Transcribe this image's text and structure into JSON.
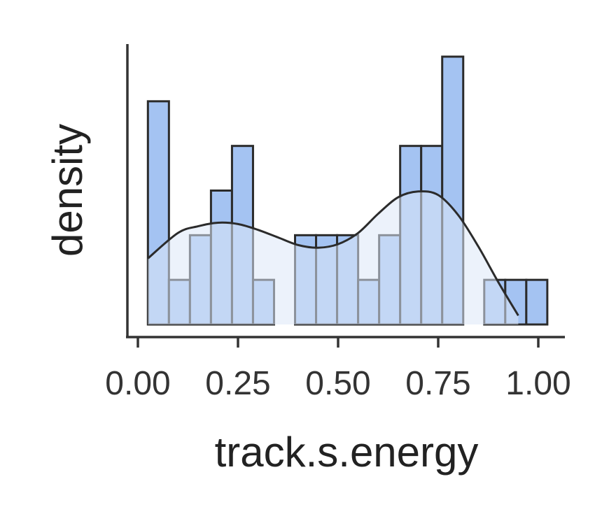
{
  "chart_data": {
    "type": "bar",
    "title": "",
    "xlabel": "track.s.energy",
    "ylabel": "density",
    "xlim": [
      -0.02,
      1.07
    ],
    "ylim": [
      0,
      6
    ],
    "grid": false,
    "legend": "none",
    "x_ticks": [
      0.0,
      0.25,
      0.5,
      0.75,
      1.0
    ],
    "x_tick_labels": [
      "0.00",
      "0.25",
      "0.50",
      "0.75",
      "1.00"
    ],
    "y_tick_labels": [],
    "bin_edges": [
      0.025,
      0.0775,
      0.13,
      0.1825,
      0.235,
      0.2875,
      0.34,
      0.3925,
      0.445,
      0.4975,
      0.55,
      0.6025,
      0.655,
      0.7075,
      0.76,
      0.8125,
      0.865,
      0.9175,
      0.97,
      1.0225
    ],
    "bin_counts": [
      5,
      1,
      2,
      3,
      4,
      1,
      0,
      2,
      2,
      2,
      1,
      2,
      4,
      4,
      6,
      0,
      1,
      1,
      1
    ],
    "kde_curve": {
      "x": [
        0.025,
        0.1,
        0.15,
        0.2,
        0.25,
        0.3,
        0.35,
        0.4,
        0.45,
        0.5,
        0.55,
        0.6,
        0.65,
        0.7,
        0.75,
        0.8,
        0.85,
        0.9,
        0.95
      ],
      "y": [
        1.48,
        2.05,
        2.2,
        2.28,
        2.25,
        2.12,
        1.95,
        1.78,
        1.72,
        1.8,
        2.05,
        2.48,
        2.85,
        2.98,
        2.9,
        2.45,
        1.75,
        0.95,
        0.2
      ]
    },
    "colors": {
      "bar_fill": "#a4c3f2",
      "bar_edge": "#2b2b2b",
      "kde_fill": "#dce7f8",
      "kde_line": "#2b2b2b",
      "axis": "#333333"
    }
  }
}
